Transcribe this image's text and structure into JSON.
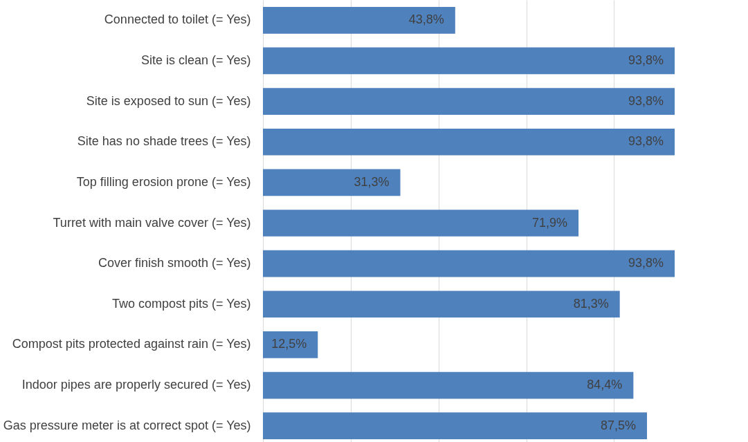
{
  "chart_data": {
    "type": "bar",
    "orientation": "horizontal",
    "categories": [
      "Connected to toilet (= Yes)",
      "Site is clean (= Yes)",
      "Site is exposed to sun (= Yes)",
      "Site has no shade trees (= Yes)",
      "Top filling erosion prone (= Yes)",
      "Turret with main valve cover (= Yes)",
      "Cover finish smooth (= Yes)",
      "Two compost pits (= Yes)",
      "Compost pits protected against rain (= Yes)",
      "Indoor pipes are properly secured (= Yes)",
      "Gas pressure meter is at correct spot (= Yes)"
    ],
    "values": [
      43.8,
      93.8,
      93.8,
      93.8,
      31.3,
      71.9,
      93.8,
      81.3,
      12.5,
      84.4,
      87.5
    ],
    "value_labels": [
      "43,8%",
      "93,8%",
      "93,8%",
      "93,8%",
      "31,3%",
      "71,9%",
      "93,8%",
      "81,3%",
      "12,5%",
      "84,4%",
      "87,5%"
    ],
    "color": "#4f81bd",
    "xlim": [
      0,
      93.8
    ],
    "xticks": [
      {
        "value": 0,
        "label": null
      },
      {
        "value": 20,
        "label": null
      },
      {
        "value": 40,
        "label": null
      },
      {
        "value": 60,
        "label": null
      },
      {
        "value": 80,
        "label": null
      }
    ],
    "grid": "x",
    "tick_labels": "y"
  }
}
